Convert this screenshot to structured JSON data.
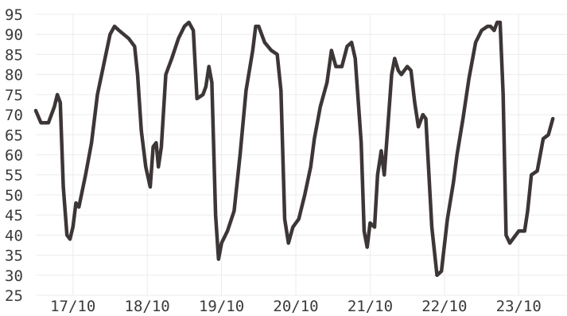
{
  "chart_data": {
    "type": "line",
    "title": "",
    "xlabel": "",
    "ylabel": "",
    "ylim": [
      25,
      95
    ],
    "yticks": [
      25,
      30,
      35,
      40,
      45,
      50,
      55,
      60,
      65,
      70,
      75,
      80,
      85,
      90,
      95
    ],
    "xlim": [
      0.0,
      7.15
    ],
    "xticks": [
      {
        "label": "17/10",
        "x": 0.5
      },
      {
        "label": "18/10",
        "x": 1.5
      },
      {
        "label": "19/10",
        "x": 2.5
      },
      {
        "label": "20/10",
        "x": 3.5
      },
      {
        "label": "21/10",
        "x": 4.5
      },
      {
        "label": "22/10",
        "x": 5.5
      },
      {
        "label": "23/10",
        "x": 6.5
      }
    ],
    "grid": true,
    "line_color": "#3d3636",
    "grid_color": "#ececec",
    "series": [
      {
        "name": "",
        "points": [
          [
            0.0,
            71
          ],
          [
            0.07,
            68
          ],
          [
            0.17,
            68
          ],
          [
            0.25,
            72
          ],
          [
            0.29,
            75
          ],
          [
            0.33,
            73
          ],
          [
            0.37,
            52
          ],
          [
            0.42,
            40
          ],
          [
            0.46,
            39
          ],
          [
            0.5,
            42
          ],
          [
            0.54,
            48
          ],
          [
            0.58,
            47
          ],
          [
            0.67,
            55
          ],
          [
            0.75,
            63
          ],
          [
            0.83,
            75
          ],
          [
            0.92,
            83
          ],
          [
            1.0,
            90
          ],
          [
            1.06,
            92
          ],
          [
            1.12,
            91
          ],
          [
            1.25,
            89
          ],
          [
            1.33,
            87
          ],
          [
            1.37,
            80
          ],
          [
            1.42,
            66
          ],
          [
            1.48,
            57
          ],
          [
            1.54,
            52
          ],
          [
            1.58,
            62
          ],
          [
            1.62,
            63
          ],
          [
            1.65,
            57
          ],
          [
            1.69,
            62
          ],
          [
            1.75,
            80
          ],
          [
            1.83,
            84
          ],
          [
            1.92,
            89
          ],
          [
            2.0,
            92
          ],
          [
            2.06,
            93
          ],
          [
            2.12,
            91
          ],
          [
            2.17,
            74
          ],
          [
            2.25,
            75
          ],
          [
            2.29,
            77
          ],
          [
            2.33,
            82
          ],
          [
            2.37,
            78
          ],
          [
            2.42,
            45
          ],
          [
            2.46,
            34
          ],
          [
            2.5,
            38
          ],
          [
            2.58,
            41
          ],
          [
            2.67,
            46
          ],
          [
            2.75,
            60
          ],
          [
            2.83,
            76
          ],
          [
            2.92,
            86
          ],
          [
            2.96,
            92
          ],
          [
            3.0,
            92
          ],
          [
            3.08,
            88
          ],
          [
            3.17,
            86
          ],
          [
            3.25,
            85
          ],
          [
            3.3,
            76
          ],
          [
            3.35,
            44
          ],
          [
            3.4,
            38
          ],
          [
            3.46,
            42
          ],
          [
            3.54,
            44
          ],
          [
            3.62,
            50
          ],
          [
            3.7,
            57
          ],
          [
            3.75,
            64
          ],
          [
            3.83,
            72
          ],
          [
            3.92,
            78
          ],
          [
            3.98,
            86
          ],
          [
            4.04,
            82
          ],
          [
            4.12,
            82
          ],
          [
            4.19,
            87
          ],
          [
            4.25,
            88
          ],
          [
            4.3,
            84
          ],
          [
            4.38,
            63
          ],
          [
            4.42,
            41
          ],
          [
            4.46,
            37
          ],
          [
            4.5,
            43
          ],
          [
            4.56,
            42
          ],
          [
            4.6,
            55
          ],
          [
            4.65,
            61
          ],
          [
            4.69,
            55
          ],
          [
            4.75,
            70
          ],
          [
            4.79,
            80
          ],
          [
            4.83,
            84
          ],
          [
            4.88,
            81
          ],
          [
            4.92,
            80
          ],
          [
            5.0,
            82
          ],
          [
            5.05,
            81
          ],
          [
            5.1,
            73
          ],
          [
            5.15,
            67
          ],
          [
            5.21,
            70
          ],
          [
            5.25,
            69
          ],
          [
            5.33,
            42
          ],
          [
            5.4,
            30
          ],
          [
            5.46,
            31
          ],
          [
            5.54,
            44
          ],
          [
            5.62,
            53
          ],
          [
            5.67,
            60
          ],
          [
            5.75,
            69
          ],
          [
            5.83,
            79
          ],
          [
            5.92,
            88
          ],
          [
            6.0,
            91
          ],
          [
            6.08,
            92
          ],
          [
            6.12,
            92
          ],
          [
            6.17,
            91
          ],
          [
            6.21,
            93
          ],
          [
            6.25,
            93
          ],
          [
            6.29,
            75
          ],
          [
            6.33,
            40
          ],
          [
            6.38,
            38
          ],
          [
            6.42,
            39
          ],
          [
            6.5,
            41
          ],
          [
            6.58,
            41
          ],
          [
            6.62,
            46
          ],
          [
            6.67,
            55
          ],
          [
            6.75,
            56
          ],
          [
            6.83,
            64
          ],
          [
            6.9,
            65
          ],
          [
            6.96,
            69
          ]
        ]
      }
    ]
  }
}
